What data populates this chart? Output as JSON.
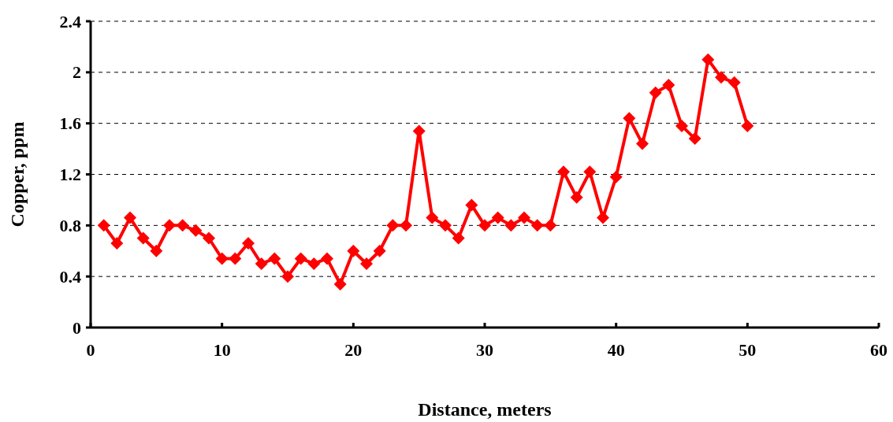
{
  "chart_data": {
    "type": "line",
    "xlabel": "Distance, meters",
    "ylabel": "Copper, ppm",
    "x": [
      1,
      2,
      3,
      4,
      5,
      6,
      7,
      8,
      9,
      10,
      11,
      12,
      13,
      14,
      15,
      16,
      17,
      18,
      19,
      20,
      21,
      22,
      23,
      24,
      25,
      26,
      27,
      28,
      29,
      30,
      31,
      32,
      33,
      34,
      35,
      36,
      37,
      38,
      39,
      40,
      41,
      42,
      43,
      44,
      45,
      46,
      47,
      48,
      49,
      50
    ],
    "series": [
      {
        "color": "#ff0000",
        "values": [
          0.8,
          0.66,
          0.86,
          0.7,
          0.6,
          0.8,
          0.8,
          0.76,
          0.7,
          0.54,
          0.54,
          0.66,
          0.5,
          0.54,
          0.4,
          0.54,
          0.5,
          0.54,
          0.34,
          0.6,
          0.5,
          0.6,
          0.8,
          0.8,
          1.54,
          0.86,
          0.8,
          0.7,
          0.96,
          0.8,
          0.86,
          0.8,
          0.86,
          0.8,
          0.8,
          1.22,
          1.02,
          1.22,
          0.86,
          1.18,
          1.64,
          1.44,
          1.84,
          1.9,
          1.58,
          1.48,
          2.1,
          1.96,
          1.92,
          1.58
        ]
      }
    ],
    "xlim": [
      0,
      60
    ],
    "xticks": [
      0,
      10,
      20,
      30,
      40,
      50,
      60
    ],
    "ylim": [
      0,
      2.4
    ],
    "yticks": [
      0,
      0.4,
      0.8,
      1.2,
      1.6,
      2,
      2.4
    ],
    "grid": "y",
    "marker": "diamond",
    "line_style": "solid"
  }
}
